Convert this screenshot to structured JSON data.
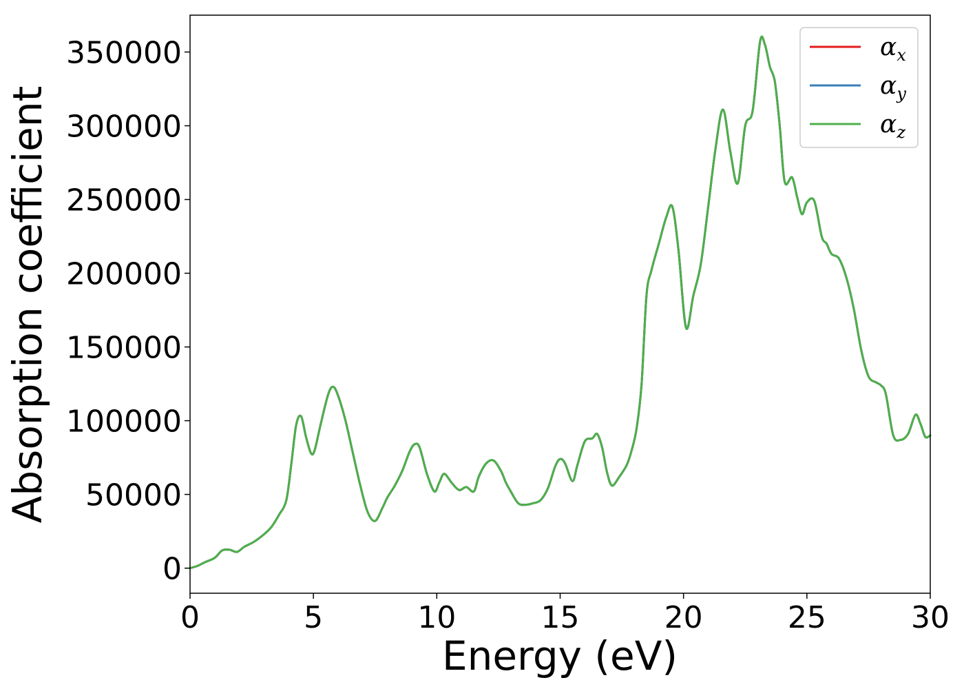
{
  "chart_data": {
    "type": "line",
    "xlabel": "Energy (eV)",
    "ylabel": "Absorption coefficient",
    "xlim": [
      0,
      30
    ],
    "ylim": [
      -17000,
      375000
    ],
    "xticks": [
      0,
      5,
      10,
      15,
      20,
      25,
      30
    ],
    "xtick_labels": [
      "0",
      "5",
      "10",
      "15",
      "20",
      "25",
      "30"
    ],
    "yticks": [
      0,
      50000,
      100000,
      150000,
      200000,
      250000,
      300000,
      350000
    ],
    "ytick_labels": [
      "0",
      "50000",
      "100000",
      "150000",
      "200000",
      "250000",
      "300000",
      "350000"
    ],
    "grid": false,
    "legend_position": "top-right",
    "series": [
      {
        "name": "α",
        "subscript": "x",
        "color": "#e41a1c"
      },
      {
        "name": "α",
        "subscript": "y",
        "color": "#377eb8"
      },
      {
        "name": "α",
        "subscript": "z",
        "color": "#4daf4a"
      }
    ],
    "note_series_overlap": true,
    "x": [
      0,
      0.3,
      0.6,
      1.0,
      1.3,
      1.6,
      1.9,
      2.2,
      2.6,
      3.0,
      3.3,
      3.6,
      3.9,
      4.1,
      4.3,
      4.5,
      4.7,
      4.9,
      5.05,
      5.3,
      5.6,
      5.8,
      6.0,
      6.3,
      6.6,
      6.9,
      7.2,
      7.5,
      7.8,
      8.0,
      8.3,
      8.6,
      8.9,
      9.1,
      9.3,
      9.6,
      9.9,
      10.1,
      10.3,
      10.6,
      10.9,
      11.2,
      11.5,
      11.7,
      12.0,
      12.3,
      12.6,
      12.8,
      13.0,
      13.3,
      13.6,
      13.9,
      14.2,
      14.5,
      14.8,
      15.0,
      15.2,
      15.5,
      15.7,
      16.0,
      16.3,
      16.5,
      16.7,
      16.9,
      17.1,
      17.4,
      17.7,
      17.9,
      18.1,
      18.3,
      18.5,
      18.7,
      19.0,
      19.3,
      19.55,
      19.8,
      20.1,
      20.4,
      20.7,
      21.0,
      21.3,
      21.6,
      21.9,
      22.2,
      22.5,
      22.8,
      23.1,
      23.3,
      23.5,
      23.7,
      23.9,
      24.1,
      24.4,
      24.6,
      24.8,
      25.0,
      25.3,
      25.6,
      25.8,
      26.0,
      26.3,
      26.6,
      26.9,
      27.2,
      27.5,
      27.8,
      28.0,
      28.2,
      28.5,
      28.8,
      29.1,
      29.4,
      29.6,
      29.8,
      30.0
    ],
    "values": [
      0,
      1500,
      4000,
      7000,
      12000,
      12500,
      11000,
      14500,
      18000,
      23000,
      28000,
      36000,
      46000,
      70000,
      97000,
      103000,
      89000,
      78000,
      80000,
      98000,
      118000,
      123000,
      117000,
      100000,
      78000,
      56000,
      38000,
      32000,
      41000,
      48000,
      56000,
      66000,
      79000,
      84000,
      82000,
      64000,
      52000,
      58000,
      64000,
      58000,
      53000,
      55000,
      52000,
      62000,
      71000,
      73000,
      66000,
      58000,
      52000,
      44000,
      43000,
      44000,
      46000,
      54000,
      69000,
      74000,
      71000,
      59000,
      70000,
      86000,
      88000,
      91000,
      82000,
      65000,
      56000,
      62000,
      70000,
      80000,
      95000,
      125000,
      185000,
      202000,
      220000,
      238000,
      245000,
      215000,
      163000,
      185000,
      206000,
      245000,
      285000,
      311000,
      282000,
      261000,
      300000,
      310000,
      357000,
      355000,
      340000,
      330000,
      300000,
      262000,
      265000,
      252000,
      240000,
      248000,
      249000,
      225000,
      220000,
      213000,
      210000,
      197000,
      176000,
      148000,
      130000,
      126000,
      124000,
      118000,
      90000,
      87000,
      91000,
      104000,
      98000,
      89000,
      90000
    ]
  }
}
